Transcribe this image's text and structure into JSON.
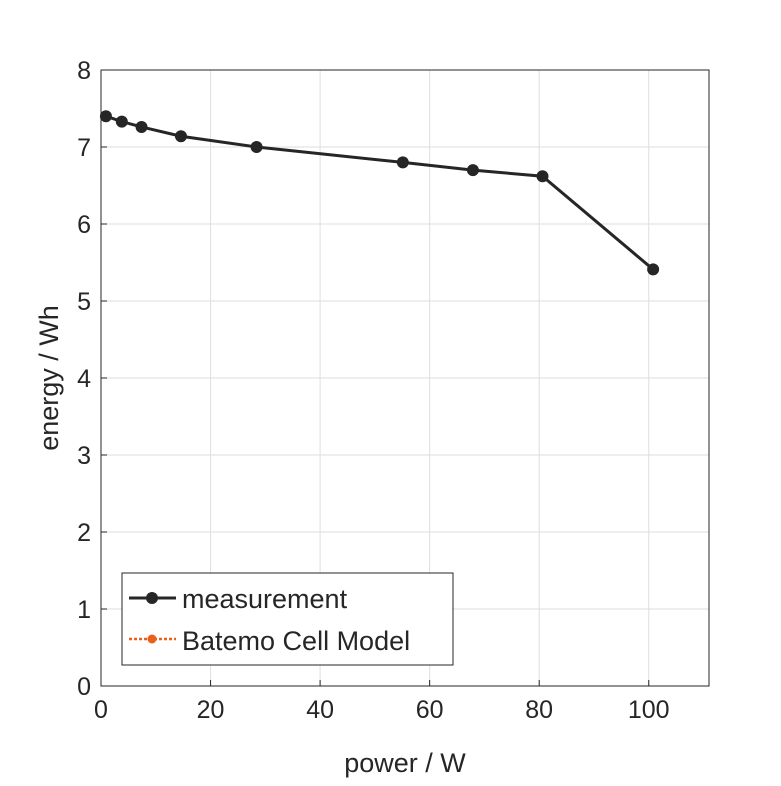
{
  "chart_data": {
    "type": "line",
    "title": "",
    "xlabel": "power / W",
    "ylabel": "energy / Wh",
    "xlim": [
      0,
      111
    ],
    "ylim": [
      0,
      8
    ],
    "xticks": [
      0,
      20,
      40,
      60,
      80,
      100
    ],
    "yticks": [
      0,
      1,
      2,
      3,
      4,
      5,
      6,
      7,
      8
    ],
    "xtick_labels": [
      "0",
      "20",
      "40",
      "60",
      "80",
      "100"
    ],
    "ytick_labels": [
      "0",
      "1",
      "2",
      "3",
      "4",
      "5",
      "6",
      "7",
      "8"
    ],
    "grid": true,
    "legend_position": "bottom-left",
    "series": [
      {
        "name": "measurement",
        "color": "#262626",
        "style": "solid",
        "marker": "circle",
        "x": [
          0.9,
          3.8,
          7.4,
          14.6,
          28.4,
          55.1,
          67.9,
          80.6,
          100.8
        ],
        "y": [
          7.4,
          7.33,
          7.26,
          7.14,
          7.0,
          6.8,
          6.7,
          6.62,
          5.41
        ]
      },
      {
        "name": "Batemo Cell Model",
        "color": "#e8601c",
        "style": "dotted",
        "marker": "circle",
        "x": [],
        "y": []
      }
    ]
  }
}
